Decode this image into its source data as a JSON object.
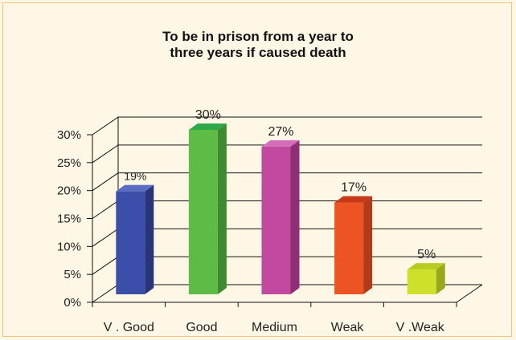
{
  "chart_data": {
    "type": "bar",
    "title_lines": [
      "To be in prison from a year to",
      "three years if caused death"
    ],
    "categories": [
      "V . Good",
      "Good",
      "Medium",
      "Weak",
      "V .Weak"
    ],
    "values": [
      19,
      30,
      27,
      17,
      5
    ],
    "data_labels": [
      "19%",
      "30%",
      "27%",
      "17%",
      "5%"
    ],
    "colors": [
      "#3b4fa8",
      "#5dbb46",
      "#c04aa0",
      "#ec5424",
      "#cde02a"
    ],
    "side_colors": [
      "#28357a",
      "#3e8a2e",
      "#8e2f75",
      "#b23a18",
      "#98a81c"
    ],
    "top_colors": [
      "#5a6cc4",
      "#2fa84a",
      "#d46cb8",
      "#c63a1a",
      "#b8cc20"
    ],
    "yticks": [
      "0%",
      "5%",
      "10%",
      "15%",
      "20%",
      "25%",
      "30%"
    ],
    "ylim": [
      0,
      30
    ],
    "xlabel": "",
    "ylabel": "",
    "grid": true,
    "legend": "none"
  }
}
